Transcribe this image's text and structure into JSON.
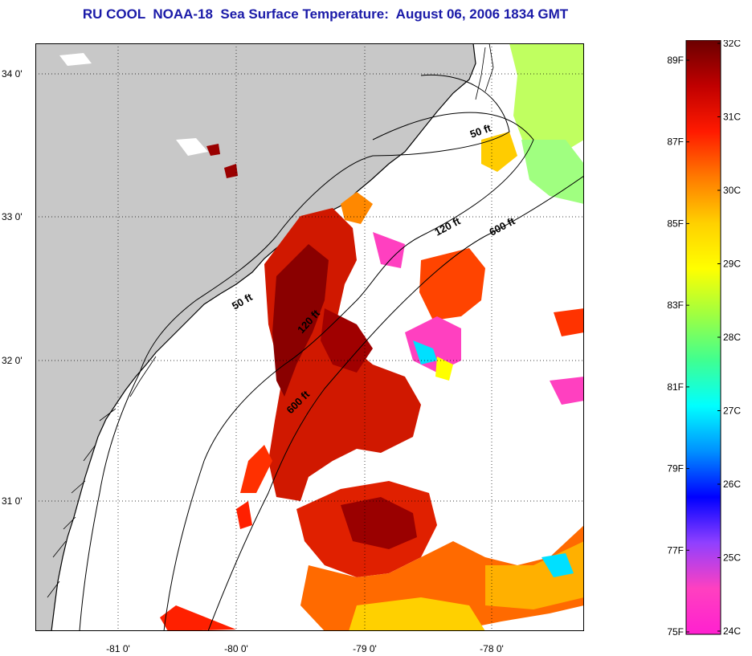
{
  "title": "RU COOL  NOAA-18  Sea Surface Temperature:  August 06, 2006 1834 GMT",
  "map": {
    "lon_ticks": [
      {
        "value": -81,
        "label": "-81 0'"
      },
      {
        "value": -80,
        "label": "-80 0'"
      },
      {
        "value": -79,
        "label": "-79 0'"
      },
      {
        "value": -78,
        "label": "-78 0'"
      }
    ],
    "lat_ticks": [
      {
        "value": 34,
        "label": "34 0'"
      },
      {
        "value": 33,
        "label": "33 0'"
      },
      {
        "value": 32,
        "label": "32 0'"
      },
      {
        "value": 31,
        "label": "31 0'"
      }
    ],
    "lon_range": [
      -81.65,
      -77.12
    ],
    "lat_range": [
      30.1,
      34.2
    ],
    "isobath_labels": [
      {
        "id": "50ft-north",
        "text": "50 ft"
      },
      {
        "id": "120ft-north",
        "text": "120 ft"
      },
      {
        "id": "600ft-north",
        "text": "600 ft"
      },
      {
        "id": "50ft-south",
        "text": "50 ft"
      },
      {
        "id": "120ft-south",
        "text": "120 ft"
      },
      {
        "id": "600ft-south",
        "text": "600 ft"
      }
    ],
    "colors": {
      "land": "#c8c8c8",
      "background": "#ffffff"
    }
  },
  "colorbar": {
    "celsius_labels": [
      "32C",
      "31C",
      "30C",
      "29C",
      "28C",
      "27C",
      "26C",
      "25C",
      "24C"
    ],
    "fahrenheit_labels": [
      "89F",
      "87F",
      "85F",
      "83F",
      "81F",
      "79F",
      "77F",
      "75F"
    ],
    "range_c": [
      24,
      32
    ],
    "range_f": [
      75,
      89.6
    ],
    "gradient": [
      "#6b0000",
      "#c00000",
      "#ff1a00",
      "#ff7a00",
      "#ffd000",
      "#ffff00",
      "#a0ff40",
      "#40ff90",
      "#00ffff",
      "#0090ff",
      "#0000ff",
      "#9040ff",
      "#ff40c0",
      "#ff20d0"
    ]
  }
}
